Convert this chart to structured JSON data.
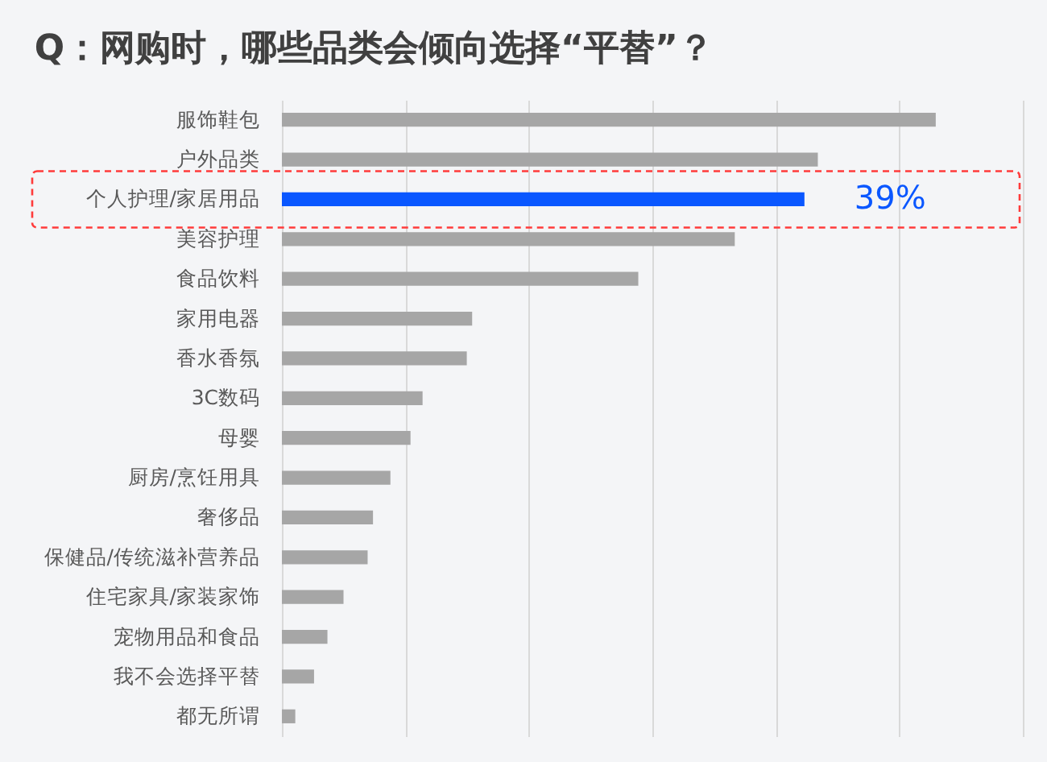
{
  "chart_data": {
    "type": "bar",
    "orientation": "horizontal",
    "title": "Q：网购时，哪些品类会倾向选择“平替”？",
    "categories": [
      "服饰鞋包",
      "户外品类",
      "个人护理/家居用品",
      "美容护理",
      "食品饮料",
      "家用电器",
      "香水香氛",
      "3C数码",
      "母婴",
      "厨房/烹饪用具",
      "奢侈品",
      "保健品/传统滋补营养品",
      "住宅家具/家装家饰",
      "宠物用品和食品",
      "我不会选择平替",
      "都无所谓"
    ],
    "values": [
      48.8,
      40,
      39,
      33.8,
      26.6,
      14.2,
      13.8,
      10.5,
      9.6,
      8.1,
      6.8,
      6.4,
      4.6,
      3.4,
      2.4,
      1
    ],
    "colors": [
      "#a6a6a6",
      "#a6a6a6",
      "#0a57ff",
      "#a6a6a6",
      "#a6a6a6",
      "#a6a6a6",
      "#a6a6a6",
      "#a6a6a6",
      "#a6a6a6",
      "#a6a6a6",
      "#a6a6a6",
      "#a6a6a6",
      "#a6a6a6",
      "#a6a6a6",
      "#a6a6a6",
      "#a6a6a6"
    ],
    "value_labels": [
      null,
      null,
      "39%",
      null,
      null,
      null,
      null,
      null,
      null,
      null,
      null,
      null,
      null,
      null,
      null,
      null
    ],
    "xlim": [
      0,
      55.3
    ],
    "xticks": [
      {
        "value": 0,
        "label": null
      },
      {
        "value": 9.2,
        "label": null
      },
      {
        "value": 18.4,
        "label": null
      },
      {
        "value": 27.7,
        "label": null
      },
      {
        "value": 36.9,
        "label": null
      },
      {
        "value": 46.1,
        "label": null
      },
      {
        "value": 55.3,
        "label": null
      }
    ],
    "grid": "x",
    "tick_labels": "y"
  }
}
